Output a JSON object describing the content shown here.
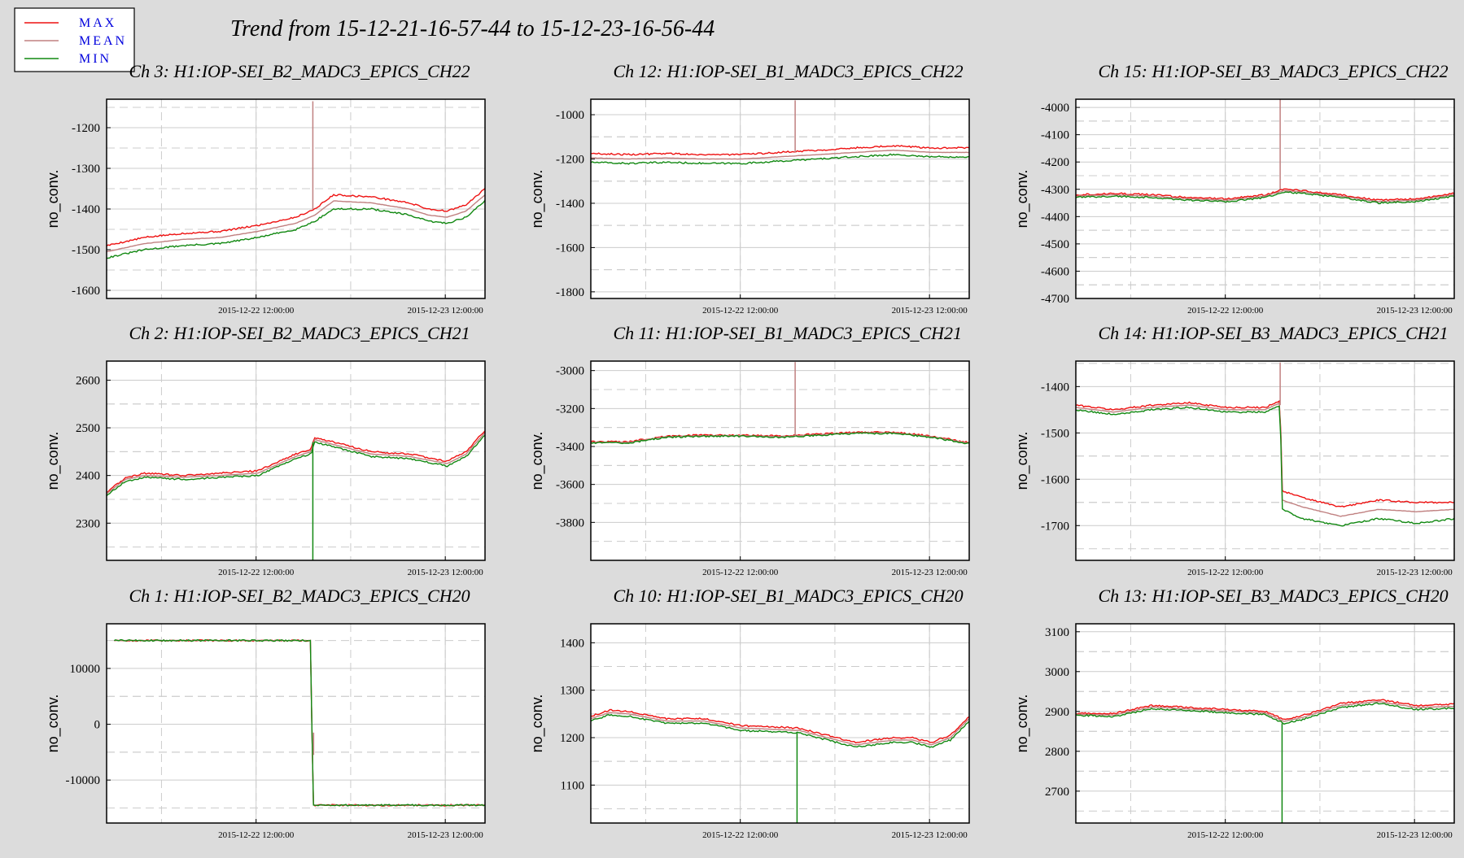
{
  "title": "Trend from 15-12-21-16-57-44 to 15-12-23-16-56-44",
  "legend": [
    {
      "label": "MAX",
      "color": "#ee1111"
    },
    {
      "label": "MEAN",
      "color": "#c08080"
    },
    {
      "label": "MIN",
      "color": "#118811"
    }
  ],
  "chart_data": [
    {
      "type": "line",
      "title": "Ch 3: H1:IOP-SEI_B2_MADC3_EPICS_CH22",
      "ylabel": "no_conv.",
      "ylim": [
        -1620,
        -1130
      ],
      "yticks": [
        -1200,
        -1300,
        -1400,
        -1500,
        -1600
      ],
      "xticks": [
        "2015-12-22 12:00:00",
        "2015-12-23 12:00:00"
      ],
      "x": [
        0,
        0.1,
        0.2,
        0.3,
        0.4,
        0.5,
        0.55,
        0.6,
        0.7,
        0.8,
        0.85,
        0.9,
        0.95,
        1
      ],
      "series": [
        {
          "name": "MAX",
          "values": [
            -1490,
            -1470,
            -1460,
            -1455,
            -1440,
            -1420,
            -1400,
            -1365,
            -1370,
            -1385,
            -1400,
            -1405,
            -1390,
            -1350
          ]
        },
        {
          "name": "MEAN",
          "values": [
            -1505,
            -1485,
            -1475,
            -1470,
            -1455,
            -1435,
            -1415,
            -1380,
            -1385,
            -1400,
            -1415,
            -1420,
            -1405,
            -1365
          ]
        },
        {
          "name": "MIN",
          "values": [
            -1520,
            -1500,
            -1490,
            -1485,
            -1470,
            -1450,
            -1430,
            -1400,
            -1400,
            -1415,
            -1430,
            -1435,
            -1420,
            -1380
          ]
        }
      ],
      "spike": {
        "x": 0.545,
        "from": -1400,
        "to": -1135
      }
    },
    {
      "type": "line",
      "title": "Ch 12: H1:IOP-SEI_B1_MADC3_EPICS_CH22",
      "ylabel": "no_conv.",
      "ylim": [
        -1830,
        -930
      ],
      "yticks": [
        -1000,
        -1200,
        -1400,
        -1600,
        -1800
      ],
      "xticks": [
        "2015-12-22 12:00:00",
        "2015-12-23 12:00:00"
      ],
      "x": [
        0,
        0.1,
        0.2,
        0.3,
        0.4,
        0.5,
        0.6,
        0.7,
        0.8,
        0.9,
        1
      ],
      "series": [
        {
          "name": "MAX",
          "values": [
            -1175,
            -1180,
            -1175,
            -1180,
            -1180,
            -1170,
            -1160,
            -1150,
            -1140,
            -1150,
            -1150
          ]
        },
        {
          "name": "MEAN",
          "values": [
            -1195,
            -1200,
            -1195,
            -1200,
            -1200,
            -1190,
            -1180,
            -1170,
            -1160,
            -1170,
            -1170
          ]
        },
        {
          "name": "MIN",
          "values": [
            -1215,
            -1220,
            -1215,
            -1220,
            -1220,
            -1210,
            -1200,
            -1190,
            -1180,
            -1190,
            -1190
          ]
        }
      ],
      "spike": {
        "x": 0.54,
        "from": -1170,
        "to": -935
      }
    },
    {
      "type": "line",
      "title": "Ch 15: H1:IOP-SEI_B3_MADC3_EPICS_CH22",
      "ylabel": "no_conv.",
      "ylim": [
        -4700,
        -3970
      ],
      "yticks": [
        -4000,
        -4100,
        -4200,
        -4300,
        -4400,
        -4500,
        -4600,
        -4700
      ],
      "xticks": [
        "2015-12-22 12:00:00",
        "2015-12-23 12:00:00"
      ],
      "x": [
        0,
        0.1,
        0.2,
        0.3,
        0.4,
        0.5,
        0.55,
        0.6,
        0.7,
        0.8,
        0.9,
        1
      ],
      "series": [
        {
          "name": "MAX",
          "values": [
            -4320,
            -4315,
            -4320,
            -4330,
            -4335,
            -4320,
            -4300,
            -4305,
            -4320,
            -4340,
            -4335,
            -4315
          ]
        },
        {
          "name": "MEAN",
          "values": [
            -4325,
            -4320,
            -4325,
            -4335,
            -4340,
            -4325,
            -4305,
            -4310,
            -4325,
            -4345,
            -4340,
            -4320
          ]
        },
        {
          "name": "MIN",
          "values": [
            -4330,
            -4325,
            -4330,
            -4340,
            -4345,
            -4330,
            -4310,
            -4315,
            -4330,
            -4350,
            -4345,
            -4325
          ]
        }
      ],
      "spike": {
        "x": 0.54,
        "from": -4300,
        "to": -3970
      }
    },
    {
      "type": "line",
      "title": "Ch 2: H1:IOP-SEI_B2_MADC3_EPICS_CH21",
      "ylabel": "no_conv.",
      "ylim": [
        2222,
        2640
      ],
      "yticks": [
        2600,
        2500,
        2400,
        2300
      ],
      "xticks": [
        "2015-12-22 12:00:00",
        "2015-12-23 12:00:00"
      ],
      "x": [
        0,
        0.05,
        0.1,
        0.2,
        0.3,
        0.4,
        0.5,
        0.54,
        0.55,
        0.6,
        0.7,
        0.8,
        0.9,
        0.95,
        1
      ],
      "series": [
        {
          "name": "MAX",
          "values": [
            2365,
            2395,
            2405,
            2400,
            2405,
            2410,
            2445,
            2455,
            2480,
            2470,
            2450,
            2445,
            2430,
            2450,
            2495
          ]
        },
        {
          "name": "MEAN",
          "values": [
            2362,
            2392,
            2400,
            2396,
            2400,
            2405,
            2440,
            2450,
            2475,
            2465,
            2445,
            2440,
            2425,
            2445,
            2490
          ]
        },
        {
          "name": "MIN",
          "values": [
            2358,
            2388,
            2396,
            2392,
            2396,
            2400,
            2435,
            2445,
            2470,
            2460,
            2440,
            2435,
            2420,
            2440,
            2485
          ]
        }
      ],
      "spike": {
        "x": 0.545,
        "from": 2470,
        "to": 2222
      }
    },
    {
      "type": "line",
      "title": "Ch 11: H1:IOP-SEI_B1_MADC3_EPICS_CH21",
      "ylabel": "no_conv.",
      "ylim": [
        -4000,
        -2950
      ],
      "yticks": [
        -3000,
        -3200,
        -3400,
        -3600,
        -3800
      ],
      "xticks": [
        "2015-12-22 12:00:00",
        "2015-12-23 12:00:00"
      ],
      "x": [
        0,
        0.1,
        0.2,
        0.3,
        0.4,
        0.5,
        0.6,
        0.7,
        0.8,
        0.9,
        1
      ],
      "series": [
        {
          "name": "MAX",
          "values": [
            -3375,
            -3375,
            -3345,
            -3340,
            -3340,
            -3345,
            -3335,
            -3325,
            -3325,
            -3345,
            -3380
          ]
        },
        {
          "name": "MEAN",
          "values": [
            -3378,
            -3378,
            -3348,
            -3343,
            -3343,
            -3348,
            -3338,
            -3328,
            -3328,
            -3348,
            -3383
          ]
        },
        {
          "name": "MIN",
          "values": [
            -3381,
            -3381,
            -3351,
            -3346,
            -3346,
            -3351,
            -3341,
            -3331,
            -3331,
            -3351,
            -3386
          ]
        }
      ],
      "spike": {
        "x": 0.54,
        "from": -3345,
        "to": -2955
      }
    },
    {
      "type": "line",
      "title": "Ch 14: H1:IOP-SEI_B3_MADC3_EPICS_CH21",
      "ylabel": "no_conv.",
      "ylim": [
        -1775,
        -1345
      ],
      "yticks": [
        -1400,
        -1500,
        -1600,
        -1700
      ],
      "xticks": [
        "2015-12-22 12:00:00",
        "2015-12-23 12:00:00"
      ],
      "x": [
        0,
        0.1,
        0.2,
        0.3,
        0.4,
        0.5,
        0.54,
        0.545,
        0.6,
        0.7,
        0.8,
        0.9,
        1
      ],
      "series": [
        {
          "name": "MAX",
          "values": [
            -1440,
            -1450,
            -1440,
            -1435,
            -1445,
            -1445,
            -1430,
            -1625,
            -1640,
            -1660,
            -1645,
            -1650,
            -1650
          ]
        },
        {
          "name": "MEAN",
          "values": [
            -1445,
            -1455,
            -1445,
            -1440,
            -1450,
            -1450,
            -1435,
            -1645,
            -1660,
            -1680,
            -1665,
            -1670,
            -1665
          ]
        },
        {
          "name": "MIN",
          "values": [
            -1450,
            -1460,
            -1450,
            -1445,
            -1455,
            -1455,
            -1440,
            -1665,
            -1685,
            -1700,
            -1685,
            -1695,
            -1685
          ]
        }
      ],
      "spike": {
        "x": 0.54,
        "from": -1440,
        "to": -1348
      }
    },
    {
      "type": "line",
      "title": "Ch 1: H1:IOP-SEI_B2_MADC3_EPICS_CH20",
      "ylabel": "no_conv.",
      "ylim": [
        -17700,
        18000
      ],
      "yticks": [
        10000,
        0,
        -10000
      ],
      "xticks": [
        "2015-12-22 12:00:00",
        "2015-12-23 12:00:00"
      ],
      "x": [
        0.02,
        0.2,
        0.4,
        0.54,
        0.545,
        0.7,
        0.9,
        1
      ],
      "series": [
        {
          "name": "MAX",
          "values": [
            15000,
            15000,
            15000,
            15000,
            -14500,
            -14500,
            -14500,
            -14500
          ]
        },
        {
          "name": "MEAN",
          "values": [
            15000,
            15000,
            15000,
            15000,
            -14500,
            -14500,
            -14500,
            -14500
          ]
        },
        {
          "name": "MIN",
          "values": [
            15000,
            15000,
            15000,
            15000,
            -14500,
            -14500,
            -14500,
            -14500
          ]
        }
      ],
      "spike": {
        "x": 0.547,
        "from": -5500,
        "to": -1500
      }
    },
    {
      "type": "line",
      "title": "Ch 10: H1:IOP-SEI_B1_MADC3_EPICS_CH20",
      "ylabel": "no_conv.",
      "ylim": [
        1020,
        1440
      ],
      "yticks": [
        1400,
        1300,
        1200,
        1100
      ],
      "xticks": [
        "2015-12-22 12:00:00",
        "2015-12-23 12:00:00"
      ],
      "x": [
        0,
        0.05,
        0.1,
        0.2,
        0.3,
        0.4,
        0.5,
        0.55,
        0.6,
        0.7,
        0.8,
        0.85,
        0.9,
        0.95,
        1
      ],
      "series": [
        {
          "name": "MAX",
          "values": [
            1245,
            1258,
            1255,
            1240,
            1240,
            1225,
            1222,
            1220,
            1210,
            1190,
            1200,
            1200,
            1190,
            1205,
            1245
          ]
        },
        {
          "name": "MEAN",
          "values": [
            1240,
            1253,
            1250,
            1235,
            1235,
            1220,
            1217,
            1215,
            1205,
            1185,
            1195,
            1195,
            1185,
            1200,
            1240
          ]
        },
        {
          "name": "MIN",
          "values": [
            1235,
            1248,
            1245,
            1230,
            1230,
            1215,
            1212,
            1210,
            1200,
            1180,
            1190,
            1190,
            1180,
            1195,
            1235
          ]
        }
      ],
      "spike": {
        "x": 0.545,
        "from": 1210,
        "to": 1020
      }
    },
    {
      "type": "line",
      "title": "Ch 13: H1:IOP-SEI_B3_MADC3_EPICS_CH20",
      "ylabel": "no_conv.",
      "ylim": [
        2620,
        3120
      ],
      "yticks": [
        3100,
        3000,
        2900,
        2800,
        2700
      ],
      "xticks": [
        "2015-12-22 12:00:00",
        "2015-12-23 12:00:00"
      ],
      "x": [
        0,
        0.1,
        0.2,
        0.3,
        0.4,
        0.5,
        0.55,
        0.6,
        0.7,
        0.8,
        0.9,
        1
      ],
      "series": [
        {
          "name": "MAX",
          "values": [
            2895,
            2895,
            2915,
            2910,
            2905,
            2900,
            2880,
            2890,
            2920,
            2930,
            2915,
            2918
          ]
        },
        {
          "name": "MEAN",
          "values": [
            2893,
            2891,
            2911,
            2906,
            2901,
            2896,
            2875,
            2885,
            2915,
            2925,
            2910,
            2913
          ]
        },
        {
          "name": "MIN",
          "values": [
            2891,
            2887,
            2907,
            2902,
            2897,
            2892,
            2870,
            2880,
            2910,
            2920,
            2905,
            2908
          ]
        }
      ],
      "spike": {
        "x": 0.545,
        "from": 2870,
        "to": 2620
      }
    }
  ]
}
